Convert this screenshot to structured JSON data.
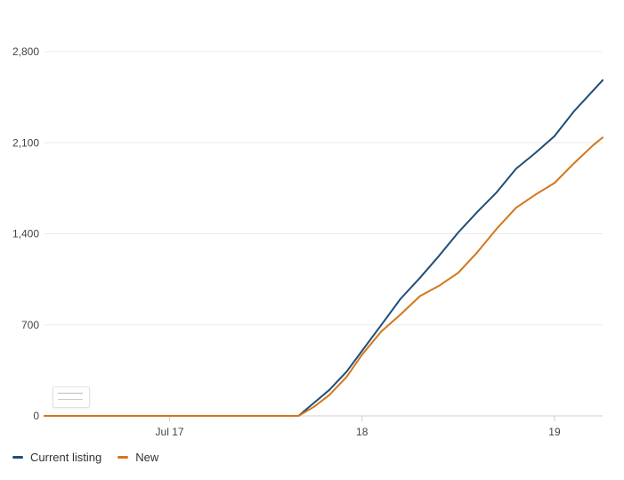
{
  "chart_data": {
    "type": "line",
    "x_ticks": [
      "Jul 17",
      "18",
      "19"
    ],
    "y_ticks": [
      "0",
      "700",
      "1,400",
      "2,100",
      "2,800"
    ],
    "ylim": [
      0,
      2800
    ],
    "xlim": [
      16.35,
      19.25
    ],
    "grid": "horizontal",
    "legend_position": "bottom-left",
    "series": [
      {
        "name": "Current listing",
        "color": "#1f4e79",
        "points": [
          [
            16.35,
            0
          ],
          [
            17.67,
            0
          ],
          [
            17.75,
            100
          ],
          [
            17.83,
            200
          ],
          [
            17.92,
            340
          ],
          [
            18.0,
            500
          ],
          [
            18.1,
            700
          ],
          [
            18.2,
            900
          ],
          [
            18.3,
            1060
          ],
          [
            18.4,
            1230
          ],
          [
            18.5,
            1410
          ],
          [
            18.6,
            1570
          ],
          [
            18.7,
            1720
          ],
          [
            18.8,
            1900
          ],
          [
            18.9,
            2020
          ],
          [
            19.0,
            2150
          ],
          [
            19.1,
            2340
          ],
          [
            19.2,
            2500
          ],
          [
            19.25,
            2580
          ]
        ]
      },
      {
        "name": "New",
        "color": "#d4761a",
        "points": [
          [
            16.35,
            0
          ],
          [
            17.67,
            0
          ],
          [
            17.75,
            70
          ],
          [
            17.83,
            160
          ],
          [
            17.92,
            300
          ],
          [
            18.0,
            470
          ],
          [
            18.1,
            650
          ],
          [
            18.2,
            780
          ],
          [
            18.3,
            920
          ],
          [
            18.4,
            1000
          ],
          [
            18.5,
            1100
          ],
          [
            18.6,
            1260
          ],
          [
            18.7,
            1440
          ],
          [
            18.8,
            1600
          ],
          [
            18.9,
            1700
          ],
          [
            19.0,
            1790
          ],
          [
            19.1,
            1940
          ],
          [
            19.2,
            2080
          ],
          [
            19.25,
            2140
          ]
        ]
      }
    ]
  },
  "legend": {
    "items": [
      {
        "label": "Current listing",
        "color": "#1f4e79"
      },
      {
        "label": "New",
        "color": "#d4761a"
      }
    ]
  }
}
